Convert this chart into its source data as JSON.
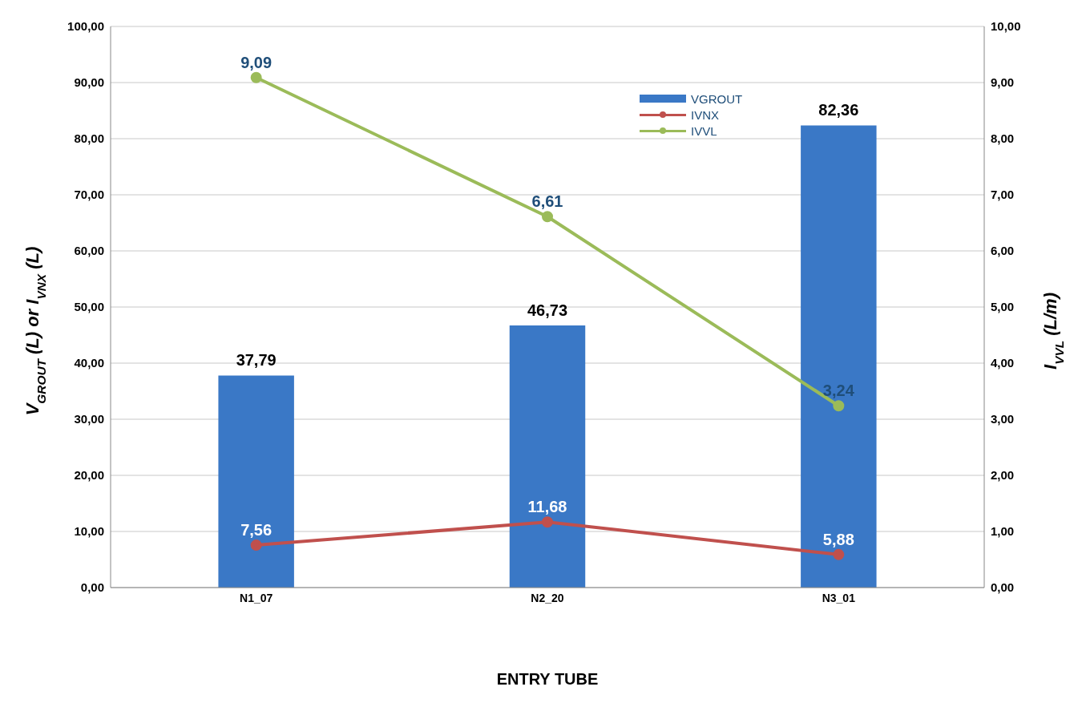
{
  "chart_data": {
    "type": "bar",
    "xlabel": "ENTRY TUBE",
    "ylabel": "V$_{GROUT}$ (L) or I$_{VNX}$ (L)",
    "y2label": "I$_{VVL}$ (L/m)",
    "categories": [
      "N1_07",
      "N2_20",
      "N3_01"
    ],
    "series": [
      {
        "name": "VGROUT",
        "color": "#3a78c6",
        "values": [
          37.79,
          46.73,
          82.36
        ],
        "value_labels": [
          "37,79",
          "46,73",
          "82,36"
        ]
      },
      {
        "name": "IVNX",
        "type": "line",
        "color": "#c0504d",
        "values": [
          7.56,
          11.68,
          5.88
        ],
        "value_labels": [
          "7,56",
          "11,68",
          "5,88"
        ]
      },
      {
        "name": "IVVL",
        "type": "line",
        "axis": "y2",
        "color": "#9bbb59",
        "values": [
          9.09,
          6.61,
          3.24
        ],
        "value_labels": [
          "9,09",
          "6,61",
          "3,24"
        ]
      }
    ],
    "ylim": [
      0,
      100
    ],
    "yticks": [
      {
        "value": 0,
        "label": "0,00"
      },
      {
        "value": 10,
        "label": "10,00"
      },
      {
        "value": 20,
        "label": "20,00"
      },
      {
        "value": 30,
        "label": "30,00"
      },
      {
        "value": 40,
        "label": "40,00"
      },
      {
        "value": 50,
        "label": "50,00"
      },
      {
        "value": 60,
        "label": "60,00"
      },
      {
        "value": 70,
        "label": "70,00"
      },
      {
        "value": 80,
        "label": "80,00"
      },
      {
        "value": 90,
        "label": "90,00"
      },
      {
        "value": 100,
        "label": "100,00"
      }
    ],
    "y2lim": [
      0,
      10
    ],
    "y2ticks": [
      {
        "value": 0,
        "label": "0,00"
      },
      {
        "value": 1,
        "label": "1,00"
      },
      {
        "value": 2,
        "label": "2,00"
      },
      {
        "value": 3,
        "label": "3,00"
      },
      {
        "value": 4,
        "label": "4,00"
      },
      {
        "value": 5,
        "label": "5,00"
      },
      {
        "value": 6,
        "label": "6,00"
      },
      {
        "value": 7,
        "label": "7,00"
      },
      {
        "value": 8,
        "label": "8,00"
      },
      {
        "value": 9,
        "label": "9,00"
      },
      {
        "value": 10,
        "label": "10,00"
      }
    ],
    "grid": "y",
    "legend": "top",
    "marker": "circle"
  }
}
